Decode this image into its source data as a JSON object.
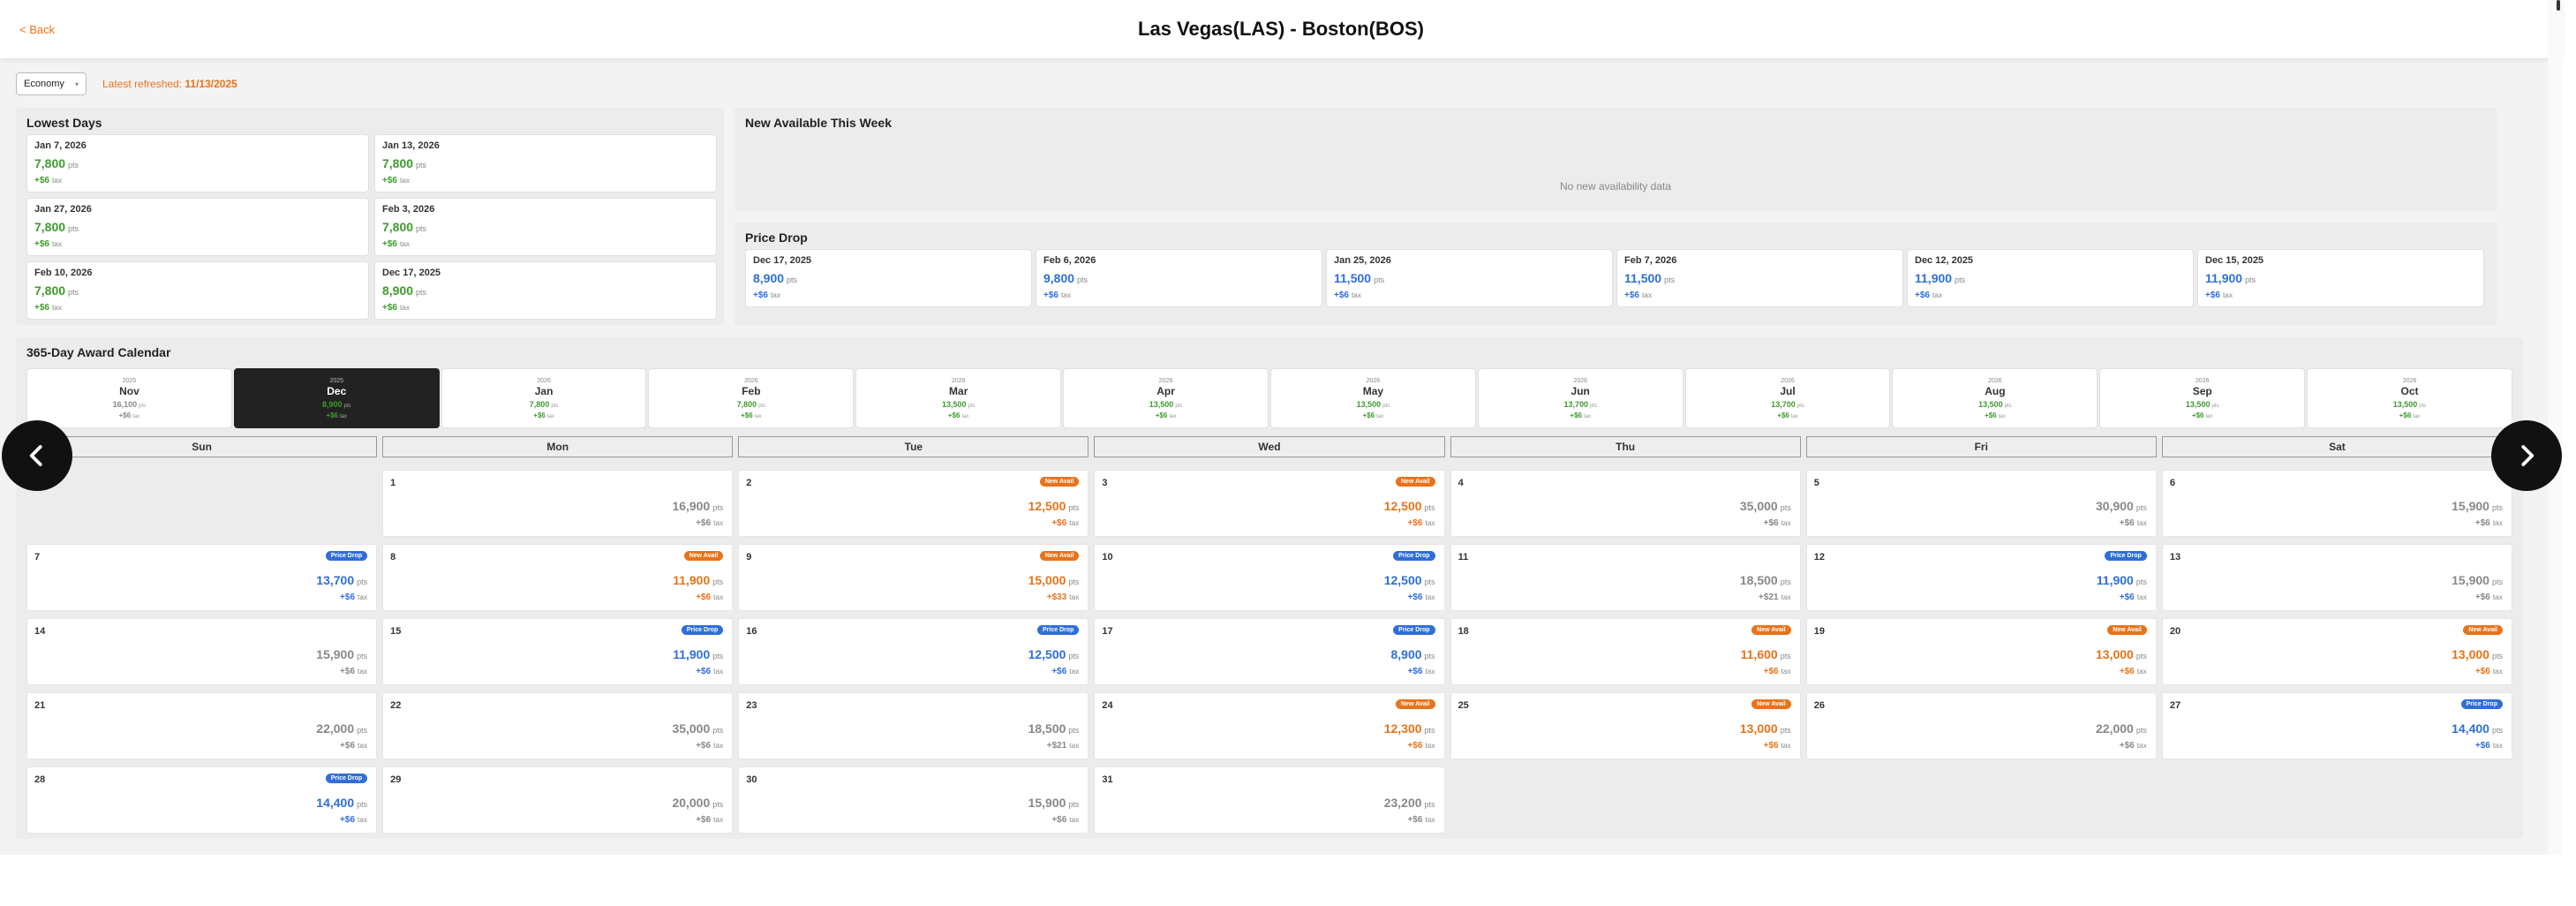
{
  "header": {
    "back_label": "< Back",
    "title": "Las Vegas(LAS) - Boston(BOS)"
  },
  "toolbar": {
    "cabin": "Economy",
    "refreshed_label": "Latest refreshed:",
    "refreshed_date": "11/13/2025"
  },
  "lowest_days": {
    "title": "Lowest Days",
    "items": [
      {
        "date": "Jan 7, 2026",
        "points": "7,800",
        "tax": "+$6"
      },
      {
        "date": "Jan 13, 2026",
        "points": "7,800",
        "tax": "+$6"
      },
      {
        "date": "Jan 27, 2026",
        "points": "7,800",
        "tax": "+$6"
      },
      {
        "date": "Feb 3, 2026",
        "points": "7,800",
        "tax": "+$6"
      },
      {
        "date": "Feb 10, 2026",
        "points": "7,800",
        "tax": "+$6"
      },
      {
        "date": "Dec 17, 2025",
        "points": "8,900",
        "tax": "+$6"
      }
    ]
  },
  "new_available": {
    "title": "New Available This Week",
    "empty_text": "No new availability data"
  },
  "price_drop": {
    "title": "Price Drop",
    "items": [
      {
        "date": "Dec 17, 2025",
        "points": "8,900",
        "tax": "+$6"
      },
      {
        "date": "Feb 6, 2026",
        "points": "9,800",
        "tax": "+$6"
      },
      {
        "date": "Jan 25, 2026",
        "points": "11,500",
        "tax": "+$6"
      },
      {
        "date": "Feb 7, 2026",
        "points": "11,500",
        "tax": "+$6"
      },
      {
        "date": "Dec 12, 2025",
        "points": "11,900",
        "tax": "+$6"
      },
      {
        "date": "Dec 15, 2025",
        "points": "11,900",
        "tax": "+$6"
      }
    ]
  },
  "units": {
    "pts": "pts",
    "tax": "tax"
  },
  "calendar": {
    "title": "365-Day Award Calendar",
    "months": [
      {
        "year": "2025",
        "name": "Nov",
        "points": "16,100",
        "tax": "+$6"
      },
      {
        "year": "2025",
        "name": "Dec",
        "points": "8,900",
        "tax": "+$6"
      },
      {
        "year": "2026",
        "name": "Jan",
        "points": "7,800",
        "tax": "+$6"
      },
      {
        "year": "2026",
        "name": "Feb",
        "points": "7,800",
        "tax": "+$6"
      },
      {
        "year": "2026",
        "name": "Mar",
        "points": "13,500",
        "tax": "+$6"
      },
      {
        "year": "2026",
        "name": "Apr",
        "points": "13,500",
        "tax": "+$6"
      },
      {
        "year": "2026",
        "name": "May",
        "points": "13,500",
        "tax": "+$6"
      },
      {
        "year": "2026",
        "name": "Jun",
        "points": "13,700",
        "tax": "+$6"
      },
      {
        "year": "2026",
        "name": "Jul",
        "points": "13,700",
        "tax": "+$6"
      },
      {
        "year": "2026",
        "name": "Aug",
        "points": "13,500",
        "tax": "+$6"
      },
      {
        "year": "2026",
        "name": "Sep",
        "points": "13,500",
        "tax": "+$6"
      },
      {
        "year": "2026",
        "name": "Oct",
        "points": "13,500",
        "tax": "+$6"
      }
    ],
    "weekdays": [
      "Sun",
      "Mon",
      "Tue",
      "Wed",
      "Thu",
      "Fri",
      "Sat"
    ],
    "badges": {
      "drop": "Price Drop",
      "avail": "New Avail"
    },
    "days": [
      {
        "day": "1",
        "points": "16,900",
        "tax": "+$6",
        "badge": ""
      },
      {
        "day": "2",
        "points": "12,500",
        "tax": "+$6",
        "badge": "avail"
      },
      {
        "day": "3",
        "points": "12,500",
        "tax": "+$6",
        "badge": "avail"
      },
      {
        "day": "4",
        "points": "35,000",
        "tax": "+$6",
        "badge": ""
      },
      {
        "day": "5",
        "points": "30,900",
        "tax": "+$6",
        "badge": ""
      },
      {
        "day": "6",
        "points": "15,900",
        "tax": "+$6",
        "badge": ""
      },
      {
        "day": "7",
        "points": "13,700",
        "tax": "+$6",
        "badge": "drop"
      },
      {
        "day": "8",
        "points": "11,900",
        "tax": "+$6",
        "badge": "avail"
      },
      {
        "day": "9",
        "points": "15,000",
        "tax": "+$33",
        "badge": "avail"
      },
      {
        "day": "10",
        "points": "12,500",
        "tax": "+$6",
        "badge": "drop"
      },
      {
        "day": "11",
        "points": "18,500",
        "tax": "+$21",
        "badge": ""
      },
      {
        "day": "12",
        "points": "11,900",
        "tax": "+$6",
        "badge": "drop"
      },
      {
        "day": "13",
        "points": "15,900",
        "tax": "+$6",
        "badge": ""
      },
      {
        "day": "14",
        "points": "15,900",
        "tax": "+$6",
        "badge": ""
      },
      {
        "day": "15",
        "points": "11,900",
        "tax": "+$6",
        "badge": "drop"
      },
      {
        "day": "16",
        "points": "12,500",
        "tax": "+$6",
        "badge": "drop"
      },
      {
        "day": "17",
        "points": "8,900",
        "tax": "+$6",
        "badge": "drop"
      },
      {
        "day": "18",
        "points": "11,600",
        "tax": "+$6",
        "badge": "avail"
      },
      {
        "day": "19",
        "points": "13,000",
        "tax": "+$6",
        "badge": "avail"
      },
      {
        "day": "20",
        "points": "13,000",
        "tax": "+$6",
        "badge": "avail"
      },
      {
        "day": "21",
        "points": "22,000",
        "tax": "+$6",
        "badge": ""
      },
      {
        "day": "22",
        "points": "35,000",
        "tax": "+$6",
        "badge": ""
      },
      {
        "day": "23",
        "points": "18,500",
        "tax": "+$21",
        "badge": ""
      },
      {
        "day": "24",
        "points": "12,300",
        "tax": "+$6",
        "badge": "avail"
      },
      {
        "day": "25",
        "points": "13,000",
        "tax": "+$6",
        "badge": "avail"
      },
      {
        "day": "26",
        "points": "22,000",
        "tax": "+$6",
        "badge": ""
      },
      {
        "day": "27",
        "points": "14,400",
        "tax": "+$6",
        "badge": "drop"
      },
      {
        "day": "28",
        "points": "14,400",
        "tax": "+$6",
        "badge": "drop"
      },
      {
        "day": "29",
        "points": "20,000",
        "tax": "+$6",
        "badge": ""
      },
      {
        "day": "30",
        "points": "15,900",
        "tax": "+$6",
        "badge": ""
      },
      {
        "day": "31",
        "points": "23,200",
        "tax": "+$6",
        "badge": ""
      }
    ]
  },
  "colors": {
    "accent": "#e8731a",
    "green": "#3f9b2e",
    "blue": "#2f6fd6",
    "dark": "#222222"
  },
  "icons": {
    "prev": "chevron-left-icon",
    "next": "chevron-right-icon",
    "caret": "chevron-down-icon"
  }
}
